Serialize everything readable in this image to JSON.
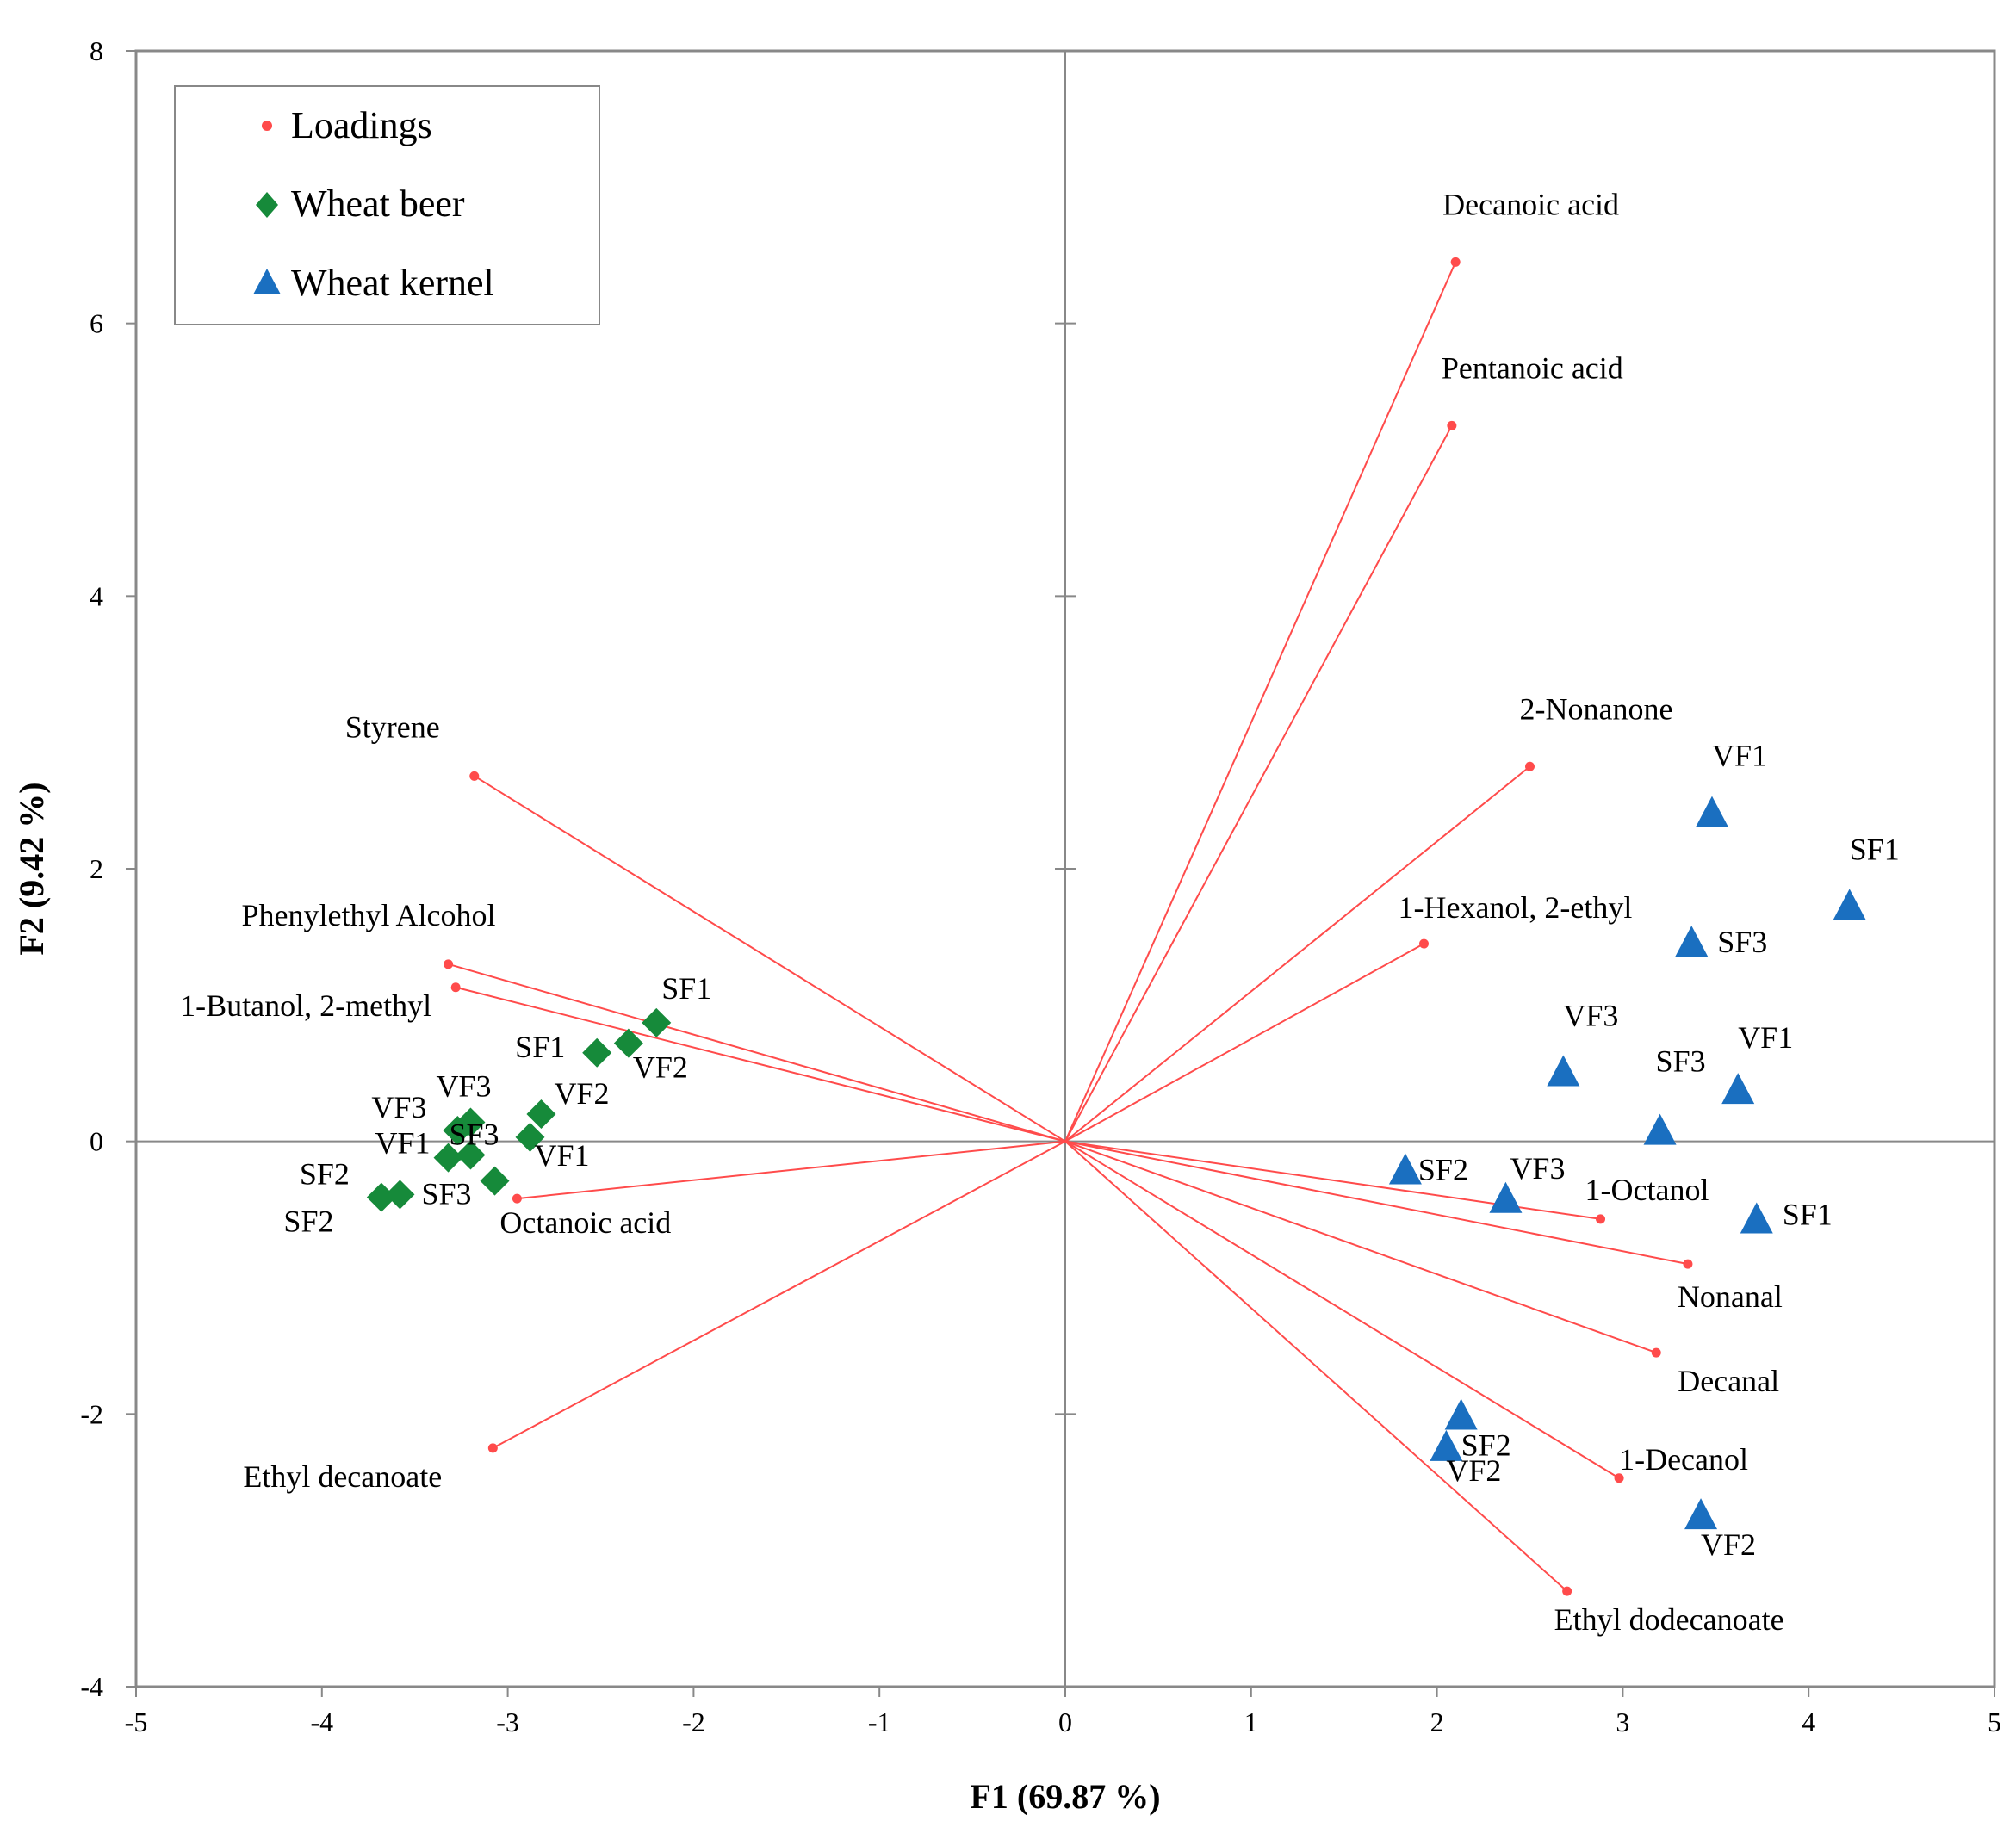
{
  "chart_data": {
    "type": "scatter",
    "subtype": "pca-biplot",
    "xlabel": "F1 (69.87 %)",
    "ylabel": "F2 (9.42 %)",
    "xlim": [
      -5,
      5
    ],
    "ylim": [
      -4,
      8
    ],
    "xticks": [
      -5,
      -4,
      -3,
      -2,
      -1,
      0,
      1,
      2,
      3,
      4,
      5
    ],
    "yticks": [
      -4,
      -2,
      0,
      2,
      4,
      6,
      8
    ],
    "legend_position": "top-left",
    "colors": {
      "loadings": "#ff4b4b",
      "wheat_beer": "#168a3a",
      "wheat_kernel": "#1a6fc0"
    },
    "series": [
      {
        "name": "Loadings",
        "marker": "dot",
        "points": [
          {
            "label": "Decanoic acid",
            "x": 2.1,
            "y": 6.45
          },
          {
            "label": "Pentanoic acid",
            "x": 2.08,
            "y": 5.25
          },
          {
            "label": "2-Nonanone",
            "x": 2.5,
            "y": 2.75
          },
          {
            "label": "1-Hexanol, 2-ethyl",
            "x": 1.93,
            "y": 1.45
          },
          {
            "label": "1-Octanol",
            "x": 2.88,
            "y": -0.57
          },
          {
            "label": "Nonanal",
            "x": 3.35,
            "y": -0.9
          },
          {
            "label": "Decanal",
            "x": 3.18,
            "y": -1.55
          },
          {
            "label": "1-Decanol",
            "x": 2.98,
            "y": -2.47
          },
          {
            "label": "Ethyl dodecanoate",
            "x": 2.7,
            "y": -3.3
          },
          {
            "label": "Styrene",
            "x": -3.18,
            "y": 2.68
          },
          {
            "label": "Phenylethyl Alcohol",
            "x": -3.32,
            "y": 1.3
          },
          {
            "label": "1-Butanol, 2-methyl",
            "x": -3.28,
            "y": 1.13
          },
          {
            "label": "Octanoic acid",
            "x": -2.95,
            "y": -0.42
          },
          {
            "label": "Ethyl decanoate",
            "x": -3.08,
            "y": -2.25
          }
        ]
      },
      {
        "name": "Wheat beer",
        "marker": "diamond",
        "points": [
          {
            "label": "SF1",
            "x": -2.2,
            "y": 0.87
          },
          {
            "label": "SF1",
            "x": -2.52,
            "y": 0.65
          },
          {
            "label": "VF2",
            "x": -2.35,
            "y": 0.72
          },
          {
            "label": "VF3",
            "x": -3.2,
            "y": 0.14
          },
          {
            "label": "VF3",
            "x": -3.27,
            "y": 0.08
          },
          {
            "label": "VF2",
            "x": -2.82,
            "y": 0.2
          },
          {
            "label": "VF1",
            "x": -2.88,
            "y": 0.03
          },
          {
            "label": "VF1",
            "x": -3.32,
            "y": -0.12
          },
          {
            "label": "SF3",
            "x": -3.2,
            "y": -0.1
          },
          {
            "label": "SF3",
            "x": -3.07,
            "y": -0.29
          },
          {
            "label": "SF2",
            "x": -3.68,
            "y": -0.41
          },
          {
            "label": "SF2",
            "x": -3.58,
            "y": -0.39
          }
        ]
      },
      {
        "name": "Wheat kernel",
        "marker": "triangle",
        "points": [
          {
            "label": "VF1",
            "x": 3.48,
            "y": 2.4
          },
          {
            "label": "SF1",
            "x": 4.22,
            "y": 1.72
          },
          {
            "label": "SF3",
            "x": 3.37,
            "y": 1.45
          },
          {
            "label": "VF3",
            "x": 2.68,
            "y": 0.5
          },
          {
            "label": "VF1",
            "x": 3.62,
            "y": 0.37
          },
          {
            "label": "SF3",
            "x": 3.2,
            "y": 0.07
          },
          {
            "label": "SF2",
            "x": 1.83,
            "y": -0.22
          },
          {
            "label": "VF3",
            "x": 2.37,
            "y": -0.43
          },
          {
            "label": "SF1",
            "x": 3.72,
            "y": -0.58
          },
          {
            "label": "SF2",
            "x": 2.13,
            "y": -2.02
          },
          {
            "label": "VF2",
            "x": 2.05,
            "y": -2.25
          },
          {
            "label": "VF2",
            "x": 3.42,
            "y": -2.75
          }
        ]
      }
    ]
  }
}
